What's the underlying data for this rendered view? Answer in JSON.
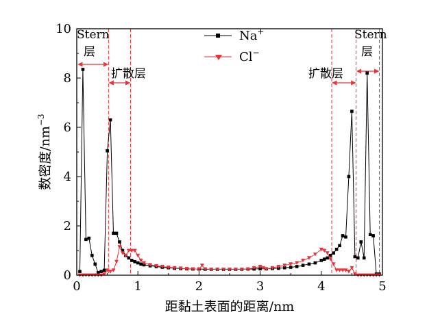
{
  "chart_data": {
    "type": "line",
    "xlabel": "距黏土表面的距离/nm",
    "ylabel": "数密度/nm",
    "ylabel_sup": "−3",
    "xlim": [
      0,
      5
    ],
    "ylim": [
      0,
      10
    ],
    "xticks": [
      0,
      1,
      2,
      3,
      4,
      5
    ],
    "yticks": [
      0,
      2,
      4,
      6,
      8,
      10
    ],
    "legend_placement": "top-center",
    "series": [
      {
        "name": "Na",
        "name_sup": "+",
        "color": "#000000",
        "marker": "square",
        "x": [
          0.05,
          0.1,
          0.15,
          0.2,
          0.25,
          0.3,
          0.35,
          0.4,
          0.45,
          0.5,
          0.55,
          0.6,
          0.65,
          0.7,
          0.75,
          0.8,
          0.85,
          0.9,
          0.95,
          1.0,
          1.05,
          1.1,
          1.2,
          1.3,
          1.4,
          1.5,
          1.6,
          1.7,
          1.8,
          1.9,
          2.0,
          2.1,
          2.2,
          2.3,
          2.4,
          2.5,
          2.6,
          2.7,
          2.8,
          2.9,
          3.0,
          3.1,
          3.2,
          3.3,
          3.4,
          3.5,
          3.6,
          3.7,
          3.8,
          3.9,
          4.0,
          4.05,
          4.1,
          4.15,
          4.2,
          4.25,
          4.3,
          4.35,
          4.4,
          4.45,
          4.5,
          4.55,
          4.6,
          4.65,
          4.7,
          4.75,
          4.8,
          4.85,
          4.9,
          4.95
        ],
        "y": [
          0.15,
          8.35,
          1.45,
          1.5,
          0.8,
          0.45,
          0.1,
          0.15,
          0.2,
          5.05,
          6.3,
          1.7,
          1.7,
          1.35,
          1.0,
          0.8,
          0.7,
          0.6,
          0.55,
          0.5,
          0.45,
          0.42,
          0.38,
          0.35,
          0.32,
          0.3,
          0.28,
          0.27,
          0.26,
          0.25,
          0.25,
          0.24,
          0.24,
          0.24,
          0.24,
          0.24,
          0.24,
          0.24,
          0.25,
          0.25,
          0.26,
          0.26,
          0.27,
          0.28,
          0.3,
          0.32,
          0.35,
          0.4,
          0.45,
          0.5,
          0.6,
          0.65,
          0.7,
          0.8,
          0.9,
          1.05,
          1.2,
          1.6,
          1.55,
          4.0,
          6.65,
          0.75,
          0.7,
          1.35,
          0.7,
          8.2,
          1.65,
          1.6,
          0.05,
          0.05
        ]
      },
      {
        "name": "Cl",
        "name_sup": "−",
        "color": "#e8333a",
        "marker": "triangle-down",
        "x": [
          0.05,
          0.1,
          0.15,
          0.2,
          0.25,
          0.3,
          0.35,
          0.4,
          0.45,
          0.5,
          0.55,
          0.6,
          0.65,
          0.7,
          0.75,
          0.8,
          0.85,
          0.9,
          0.95,
          1.0,
          1.05,
          1.1,
          1.2,
          1.3,
          1.4,
          1.5,
          1.6,
          1.7,
          1.8,
          1.9,
          2.0,
          2.05,
          2.1,
          2.2,
          2.3,
          2.4,
          2.5,
          2.6,
          2.7,
          2.8,
          2.9,
          3.0,
          3.05,
          3.1,
          3.2,
          3.3,
          3.4,
          3.5,
          3.6,
          3.7,
          3.8,
          3.9,
          4.0,
          4.05,
          4.1,
          4.15,
          4.2,
          4.25,
          4.3,
          4.35,
          4.4,
          4.45,
          4.5,
          4.55,
          4.6,
          4.65,
          4.7,
          4.75,
          4.8,
          4.85,
          4.9,
          4.95
        ],
        "y": [
          0.0,
          0.0,
          0.0,
          0.0,
          0.0,
          0.0,
          0.0,
          0.0,
          0.05,
          0.2,
          0.15,
          0.2,
          0.55,
          1.15,
          0.9,
          0.8,
          1.0,
          1.0,
          1.0,
          0.8,
          0.6,
          0.5,
          0.42,
          0.38,
          0.35,
          0.32,
          0.3,
          0.28,
          0.26,
          0.25,
          0.25,
          0.4,
          0.25,
          0.24,
          0.24,
          0.24,
          0.24,
          0.24,
          0.24,
          0.25,
          0.3,
          0.35,
          0.3,
          0.25,
          0.3,
          0.35,
          0.4,
          0.45,
          0.5,
          0.6,
          0.7,
          0.85,
          1.05,
          1.0,
          0.9,
          0.65,
          0.45,
          0.2,
          0.2,
          0.2,
          0.2,
          0.15,
          0.3,
          0.05,
          0.0,
          0.0,
          0.0,
          0.0,
          0.0,
          0.0,
          0.0,
          0.0
        ]
      }
    ],
    "region_lines_x": [
      0.52,
      0.88,
      4.17,
      4.57,
      4.95
    ],
    "annotations": {
      "stern_left_line1": "Stern",
      "stern_left_line2": "层",
      "diffuse_left": "扩散层",
      "diffuse_right": "扩散层",
      "stern_right_line1": "Stern",
      "stern_right_line2": "层"
    }
  }
}
